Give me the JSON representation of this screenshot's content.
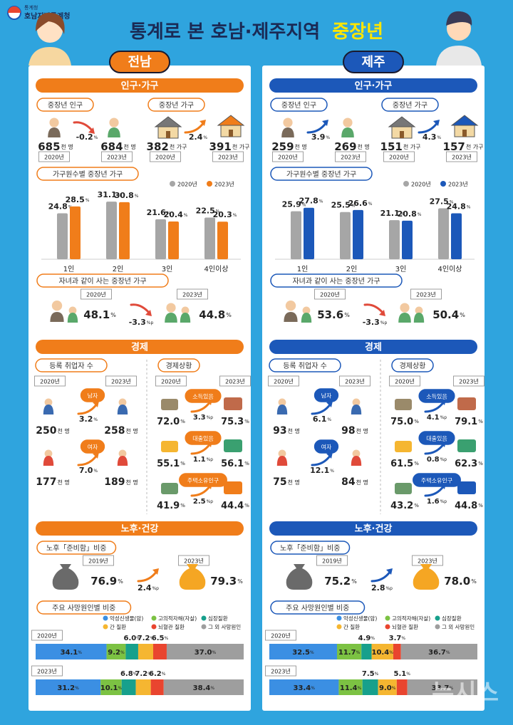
{
  "header": {
    "org_small": "통계청",
    "org": "호남지방통계청",
    "title_main": "통계로 본 호남·제주지역",
    "title_accent": "중장년",
    "watermark": "뉴시스"
  },
  "panels": [
    {
      "region": "전남",
      "color": "#f07d1a",
      "population": {
        "title": "인구·가구",
        "people": {
          "label": "중장년 인구",
          "from": {
            "value": "685",
            "unit": "천 명",
            "year": "2020년"
          },
          "to": {
            "value": "684",
            "unit": "천 명",
            "year": "2023년"
          },
          "change": "-0.2",
          "change_unit": "%"
        },
        "households": {
          "label": "중장년 가구",
          "from": {
            "value": "382",
            "unit": "천 가구",
            "year": "2020년"
          },
          "to": {
            "value": "391",
            "unit": "천 가구",
            "year": "2023년"
          },
          "change": "2.4",
          "change_unit": "%"
        },
        "by_size": {
          "type": "bar",
          "title": "가구원수별 중장년 가구",
          "categories": [
            "1인",
            "2인",
            "3인",
            "4인이상"
          ],
          "unit": "%",
          "series": [
            {
              "name": "2020년",
              "color": "#a6a6a6",
              "values": [
                24.8,
                31.1,
                21.6,
                22.5
              ]
            },
            {
              "name": "2023년",
              "color": "#f07d1a",
              "values": [
                28.5,
                30.8,
                20.4,
                20.3
              ]
            }
          ]
        },
        "with_children": {
          "label": "자녀과 같이 사는 중장년 가구",
          "from": {
            "value": "48.1",
            "unit": "%",
            "year": "2020년"
          },
          "to": {
            "value": "44.8",
            "unit": "%",
            "year": "2023년"
          },
          "change": "-3.3",
          "change_unit": "%p"
        }
      },
      "economy": {
        "title": "경제",
        "employment": {
          "label": "등록 취업자 수",
          "years": [
            "2020년",
            "2023년"
          ],
          "rows": [
            {
              "label": "남자",
              "from": "250",
              "to": "258",
              "unit": "천 명",
              "change": "3.2",
              "change_unit": "%"
            },
            {
              "label": "여자",
              "from": "177",
              "to": "189",
              "unit": "천 명",
              "change": "7.0",
              "change_unit": "%"
            }
          ]
        },
        "status": {
          "label": "경제상황",
          "years": [
            "2020년",
            "2023년"
          ],
          "rows": [
            {
              "label": "소득있음",
              "from": "72.0",
              "to": "75.3",
              "unit": "%",
              "change": "3.3",
              "change_unit": "%p"
            },
            {
              "label": "대출있음",
              "from": "55.1",
              "to": "56.1",
              "unit": "%",
              "change": "1.1",
              "change_unit": "%p"
            },
            {
              "label": "주택소유인구",
              "from": "41.9",
              "to": "44.4",
              "unit": "%",
              "change": "2.5",
              "change_unit": "%p"
            }
          ]
        }
      },
      "aging": {
        "title": "노후·건강",
        "retirement": {
          "label": "노후「준비함」비중",
          "from": {
            "value": "76.9",
            "unit": "%",
            "year": "2019년"
          },
          "to": {
            "value": "79.3",
            "unit": "%",
            "year": "2023년"
          },
          "change": "2.4",
          "change_unit": "%p"
        },
        "death": {
          "type": "stacked-bar",
          "title": "주요 사망원인별 비중",
          "categories": [
            "2020년",
            "2023년"
          ],
          "unit": "%",
          "series": [
            {
              "name": "악성신생물(암)",
              "color": "#3b8fe3",
              "values": [
                34.1,
                31.2
              ],
              "value_labels": [
                "34.1",
                "31.2"
              ]
            },
            {
              "name": "고의적자해(자살)",
              "color": "#7cc243",
              "values": [
                9.2,
                10.1
              ],
              "value_labels": [
                "9.2",
                "10.1"
              ]
            },
            {
              "name": "심장질환",
              "color": "#17a08c",
              "values": [
                6.0,
                6.8
              ],
              "value_labels": [
                "6.0",
                "6.8"
              ]
            },
            {
              "name": "간 질환",
              "color": "#f5b631",
              "values": [
                7.2,
                7.2
              ],
              "value_labels": [
                "7.2",
                "7.2"
              ]
            },
            {
              "name": "뇌혈관 질환",
              "color": "#e9452f",
              "values": [
                6.5,
                6.2
              ],
              "value_labels": [
                "6.5",
                "6.2"
              ]
            },
            {
              "name": "그 외 사망원인",
              "color": "#9e9e9e",
              "values": [
                37.0,
                38.4
              ],
              "value_labels": [
                "37.0",
                "38.4"
              ]
            }
          ]
        }
      }
    },
    {
      "region": "제주",
      "color": "#1c58b9",
      "population": {
        "title": "인구·가구",
        "people": {
          "label": "중장년 인구",
          "from": {
            "value": "259",
            "unit": "천 명",
            "year": "2020년"
          },
          "to": {
            "value": "269",
            "unit": "천 명",
            "year": "2023년"
          },
          "change": "3.9",
          "change_unit": "%"
        },
        "households": {
          "label": "중장년 가구",
          "from": {
            "value": "151",
            "unit": "천 가구",
            "year": "2020년"
          },
          "to": {
            "value": "157",
            "unit": "천 가구",
            "year": "2023년"
          },
          "change": "4.3",
          "change_unit": "%"
        },
        "by_size": {
          "type": "bar",
          "title": "가구원수별 중장년 가구",
          "categories": [
            "1인",
            "2인",
            "3인",
            "4인이상"
          ],
          "unit": "%",
          "series": [
            {
              "name": "2020년",
              "color": "#a6a6a6",
              "values": [
                25.9,
                25.5,
                21.1,
                27.5
              ]
            },
            {
              "name": "2023년",
              "color": "#1c58b9",
              "values": [
                27.8,
                26.6,
                20.8,
                24.8
              ]
            }
          ]
        },
        "with_children": {
          "label": "자녀과 같이 사는 중장년 가구",
          "from": {
            "value": "53.6",
            "unit": "%",
            "year": "2020년"
          },
          "to": {
            "value": "50.4",
            "unit": "%",
            "year": "2023년"
          },
          "change": "-3.3",
          "change_unit": "%p"
        }
      },
      "economy": {
        "title": "경제",
        "employment": {
          "label": "등록 취업자 수",
          "years": [
            "2020년",
            "2023년"
          ],
          "rows": [
            {
              "label": "남자",
              "from": "93",
              "to": "98",
              "unit": "천 명",
              "change": "6.1",
              "change_unit": "%"
            },
            {
              "label": "여자",
              "from": "75",
              "to": "84",
              "unit": "천 명",
              "change": "12.1",
              "change_unit": "%"
            }
          ]
        },
        "status": {
          "label": "경제상황",
          "years": [
            "2020년",
            "2023년"
          ],
          "rows": [
            {
              "label": "소득있음",
              "from": "75.0",
              "to": "79.1",
              "unit": "%",
              "change": "4.1",
              "change_unit": "%p"
            },
            {
              "label": "대출있음",
              "from": "61.5",
              "to": "62.3",
              "unit": "%",
              "change": "0.8",
              "change_unit": "%p"
            },
            {
              "label": "주택소유인구",
              "from": "43.2",
              "to": "44.8",
              "unit": "%",
              "change": "1.6",
              "change_unit": "%p"
            }
          ]
        }
      },
      "aging": {
        "title": "노후·건강",
        "retirement": {
          "label": "노후「준비함」비중",
          "from": {
            "value": "75.2",
            "unit": "%",
            "year": "2019년"
          },
          "to": {
            "value": "78.0",
            "unit": "%",
            "year": "2023년"
          },
          "change": "2.8",
          "change_unit": "%p"
        },
        "death": {
          "type": "stacked-bar",
          "title": "주요 사망원인별 비중",
          "categories": [
            "2020년",
            "2023년"
          ],
          "unit": "%",
          "series": [
            {
              "name": "악성신생물(암)",
              "color": "#3b8fe3",
              "values": [
                32.5,
                33.4
              ],
              "value_labels": [
                "32.5",
                "33.4"
              ]
            },
            {
              "name": "고의적자해(자살)",
              "color": "#7cc243",
              "values": [
                11.7,
                11.4
              ],
              "value_labels": [
                "11.7",
                "11.4"
              ]
            },
            {
              "name": "심장질환",
              "color": "#17a08c",
              "values": [
                4.9,
                7.5
              ],
              "value_labels": [
                "4.9",
                "7.5"
              ]
            },
            {
              "name": "간 질환",
              "color": "#f5b631",
              "values": [
                10.4,
                9.0
              ],
              "value_labels": [
                "10.4",
                "9.0"
              ]
            },
            {
              "name": "뇌혈관 질환",
              "color": "#e9452f",
              "values": [
                3.7,
                5.1
              ],
              "value_labels": [
                "3.7",
                "5.1"
              ]
            },
            {
              "name": "그 외 사망원인",
              "color": "#9e9e9e",
              "values": [
                36.7,
                33.7
              ],
              "value_labels": [
                "36.7",
                "33.7"
              ]
            }
          ]
        }
      }
    }
  ]
}
